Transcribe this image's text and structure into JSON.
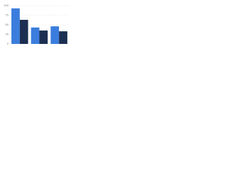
{
  "chart_data": {
    "type": "bar",
    "categories": [
      null,
      null,
      null
    ],
    "series": [
      {
        "color": "#3b7ddd",
        "values": [
          93,
          43,
          46
        ]
      },
      {
        "color": "#1c2f52",
        "values": [
          63,
          35,
          33
        ]
      }
    ],
    "ylim": [
      0,
      100
    ],
    "yticks": [
      0,
      25,
      50,
      75,
      100
    ],
    "grid": true
  }
}
